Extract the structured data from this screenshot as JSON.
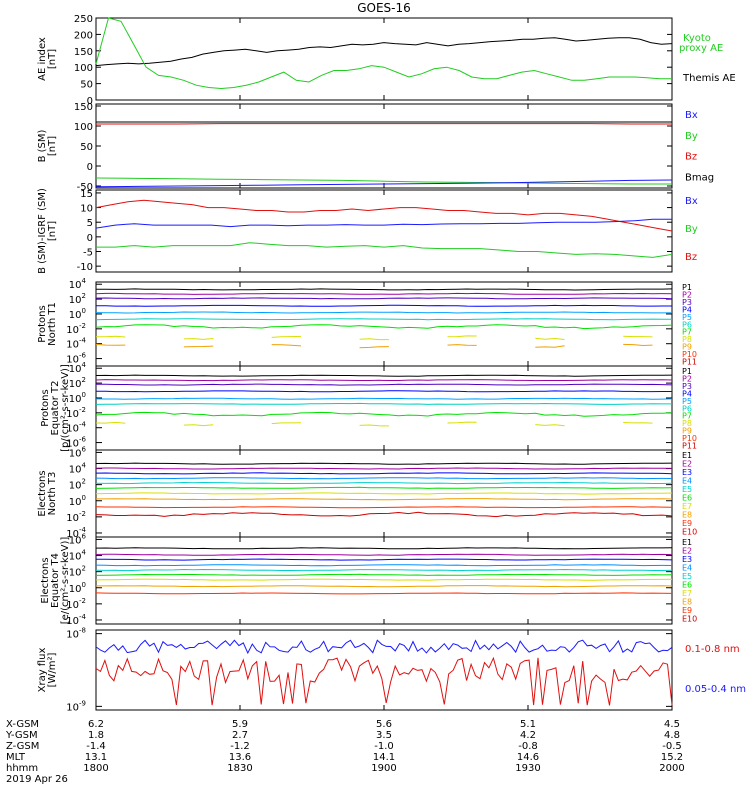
{
  "title": "GOES-16",
  "date": "2019 Apr 26",
  "colors": {
    "black": "#000000",
    "green": "#22cc22",
    "blue": "#1a1aff",
    "red": "#e01010",
    "p_colors": [
      "#000000",
      "#a000a0",
      "#5000c0",
      "#0000ff",
      "#00a0ff",
      "#00d0c0",
      "#00e000",
      "#d8e000",
      "#f0a000",
      "#ff3000",
      "#d00000"
    ],
    "e_colors": [
      "#000000",
      "#a000a0",
      "#0000ff",
      "#0090ff",
      "#00d0d0",
      "#00e000",
      "#d8e000",
      "#f0a000",
      "#ff3000",
      "#d00000"
    ]
  },
  "chart_data": [
    {
      "type": "line",
      "id": "ae",
      "ylabel": "AE index\n[nT]",
      "ylim": [
        0,
        250
      ],
      "yticks": [
        "0",
        "50",
        "100",
        "150",
        "200",
        "250"
      ],
      "legend": [
        {
          "name": "Kyoto\nproxy AE",
          "color": "green"
        },
        {
          "name": "Themis AE",
          "color": "black"
        }
      ],
      "series": [
        {
          "name": "Themis AE",
          "color": "black",
          "values": [
            105,
            108,
            110,
            112,
            110,
            112,
            115,
            118,
            125,
            130,
            140,
            145,
            150,
            152,
            155,
            150,
            145,
            150,
            152,
            155,
            160,
            162,
            160,
            165,
            170,
            168,
            170,
            175,
            172,
            170,
            168,
            175,
            170,
            165,
            170,
            172,
            175,
            178,
            180,
            182,
            185,
            185,
            188,
            190,
            185,
            180,
            182,
            185,
            188,
            190,
            190,
            185,
            175,
            170,
            172
          ]
        },
        {
          "name": "Kyoto proxy AE",
          "color": "green",
          "values": [
            110,
            250,
            240,
            170,
            100,
            75,
            70,
            60,
            45,
            38,
            35,
            38,
            45,
            55,
            70,
            85,
            60,
            55,
            75,
            90,
            90,
            95,
            105,
            100,
            85,
            70,
            80,
            95,
            100,
            90,
            70,
            65,
            65,
            75,
            85,
            90,
            80,
            70,
            60,
            60,
            65,
            70,
            70,
            70,
            68,
            65,
            65
          ]
        }
      ]
    },
    {
      "type": "line",
      "id": "bsm",
      "ylabel": "B (SM)\n[nT]",
      "ylim": [
        -55,
        155
      ],
      "yticks": [
        "150",
        "100",
        "50",
        "0",
        "-50"
      ],
      "legend": [
        {
          "name": "Bx",
          "color": "blue"
        },
        {
          "name": "By",
          "color": "green"
        },
        {
          "name": "Bz",
          "color": "red"
        },
        {
          "name": "Bmag",
          "color": "black"
        }
      ],
      "series": [
        {
          "name": "Bmag",
          "color": "black",
          "values": [
            110,
            110,
            110,
            110,
            110,
            110,
            110,
            110,
            110,
            110,
            110,
            110,
            110,
            110,
            110
          ]
        },
        {
          "name": "Bz",
          "color": "red",
          "values": [
            105,
            105,
            105,
            106,
            106,
            106,
            106,
            106,
            106,
            106,
            106,
            106,
            106,
            105,
            105
          ]
        },
        {
          "name": "By",
          "color": "green",
          "values": [
            -30,
            -31,
            -32,
            -33,
            -34,
            -35,
            -36,
            -38,
            -40,
            -41,
            -42,
            -43,
            -44,
            -45,
            -45
          ]
        },
        {
          "name": "Bx",
          "color": "blue",
          "values": [
            -52,
            -51,
            -50,
            -49,
            -48,
            -47,
            -46,
            -45,
            -44,
            -43,
            -42,
            -40,
            -38,
            -36,
            -35
          ]
        }
      ]
    },
    {
      "type": "line",
      "id": "dbsm",
      "ylabel": "B (SM)-IGRF (SM)\n[nT]",
      "ylim": [
        -12,
        16
      ],
      "yticks": [
        "15",
        "10",
        "5",
        "0",
        "-5",
        "-10"
      ],
      "legend": [
        {
          "name": "Bx",
          "color": "blue"
        },
        {
          "name": "By",
          "color": "green"
        },
        {
          "name": "Bz",
          "color": "red"
        }
      ],
      "series": [
        {
          "name": "Bz",
          "color": "red",
          "values": [
            10,
            11,
            12,
            12.5,
            12,
            11.5,
            11,
            10,
            10,
            9.5,
            9,
            9,
            8.5,
            8.5,
            9,
            9,
            9.5,
            9,
            9.5,
            10,
            10,
            9.5,
            9,
            9,
            8.5,
            8,
            8,
            7.5,
            8,
            8,
            7.5,
            7,
            6,
            5,
            4,
            3,
            2
          ]
        },
        {
          "name": "Bx",
          "color": "blue",
          "values": [
            3,
            4,
            4.5,
            4,
            4,
            4,
            4,
            3.5,
            4,
            4,
            3.8,
            4,
            4,
            4.2,
            4,
            4,
            4.3,
            4.2,
            4.4,
            4.5,
            4.5,
            4.6,
            4.6,
            4.8,
            5,
            5,
            5,
            5.2,
            5.5,
            6,
            6
          ]
        },
        {
          "name": "By",
          "color": "green",
          "values": [
            -3.5,
            -3.5,
            -3,
            -3.5,
            -3,
            -3,
            -3,
            -3,
            -2,
            -2.5,
            -3,
            -3,
            -3.5,
            -3.2,
            -3,
            -3.5,
            -3,
            -3.8,
            -4,
            -4,
            -4,
            -4.5,
            -5,
            -5,
            -5.5,
            -6,
            -5.8,
            -6,
            -6.5,
            -7,
            -6
          ]
        }
      ]
    },
    {
      "type": "line",
      "id": "pn",
      "log": true,
      "ylabel": "Protons\nNorth T1",
      "ydecades": [
        4,
        2,
        0,
        -2,
        -4,
        -6
      ],
      "ylim_log": [
        -7,
        4.3
      ],
      "legend_names": [
        "P1",
        "P2",
        "P3",
        "P4",
        "P5",
        "P6",
        "P7",
        "P8",
        "P9",
        "P10",
        "P11"
      ],
      "levels_log": [
        3.3,
        2.7,
        2.1,
        1.1,
        0.2,
        -0.7,
        -1.7,
        -3.2,
        -4.3,
        null,
        null
      ]
    },
    {
      "type": "line",
      "id": "pe",
      "log": true,
      "ylabel": "Protons\nEquator T2\n[p/(cm²-s-sr-keV)]",
      "ydecades": [
        4,
        2,
        0,
        -2,
        -4,
        -6
      ],
      "ylim_log": [
        -7,
        4.3
      ],
      "legend_names": [
        "P1",
        "P2",
        "P3",
        "P4",
        "P5",
        "P6",
        "P7",
        "P8",
        "P9",
        "P10",
        "P11"
      ],
      "levels_log": [
        3.0,
        2.4,
        1.8,
        0.9,
        -0.1,
        -0.8,
        -2.2,
        -3.5,
        null,
        null,
        null
      ]
    },
    {
      "type": "line",
      "id": "en",
      "log": true,
      "ylabel": "Electrons\nNorth T3",
      "ydecades": [
        6,
        4,
        2,
        0,
        -2,
        -4
      ],
      "ylim_log": [
        -4.5,
        6.3
      ],
      "legend_names": [
        "E1",
        "E2",
        "E3",
        "E4",
        "E5",
        "E6",
        "E7",
        "E8",
        "E9",
        "E10"
      ],
      "levels_log": [
        4.6,
        4.0,
        3.4,
        2.8,
        2.2,
        1.6,
        0.9,
        0.2,
        -0.8,
        -1.7
      ]
    },
    {
      "type": "line",
      "id": "ee",
      "log": true,
      "ylabel": "Electrons\nEquator T4\n[e/(cm²-s-sr-keV)]",
      "ydecades": [
        6,
        4,
        2,
        0,
        -2,
        -4
      ],
      "ylim_log": [
        -4.5,
        6.3
      ],
      "legend_names": [
        "E1",
        "E2",
        "E3",
        "E4",
        "E5",
        "E6",
        "E7",
        "E8",
        "E9",
        "E10"
      ],
      "levels_log": [
        4.9,
        4.1,
        3.5,
        2.8,
        2.2,
        1.6,
        1.0,
        0.2,
        -0.7,
        null
      ]
    },
    {
      "type": "line",
      "id": "xray",
      "log": true,
      "ylabel": "Xray flux\n[W/m²]",
      "ydecades": [
        -8,
        -9
      ],
      "ylim_log": [
        -9.05,
        -7.95
      ],
      "legend": [
        {
          "name": "0.1-0.8 nm",
          "color": "red"
        },
        {
          "name": "0.05-0.4 nm",
          "color": "blue"
        }
      ]
    }
  ],
  "xaxis": {
    "x_gsm": [
      "6.2",
      "5.9",
      "5.6",
      "5.1",
      "4.5"
    ],
    "y_gsm": [
      "1.8",
      "2.7",
      "3.5",
      "4.2",
      "4.8"
    ],
    "z_gsm": [
      "-1.4",
      "-1.2",
      "-1.0",
      "-0.8",
      "-0.5"
    ],
    "mlt": [
      "13.1",
      "13.6",
      "14.1",
      "14.6",
      "15.2"
    ],
    "hhmm": [
      "1800",
      "1830",
      "1900",
      "1930",
      "2000"
    ],
    "row_labels": [
      "X-GSM",
      "Y-GSM",
      "Z-GSM",
      "MLT",
      "hhmm"
    ]
  }
}
